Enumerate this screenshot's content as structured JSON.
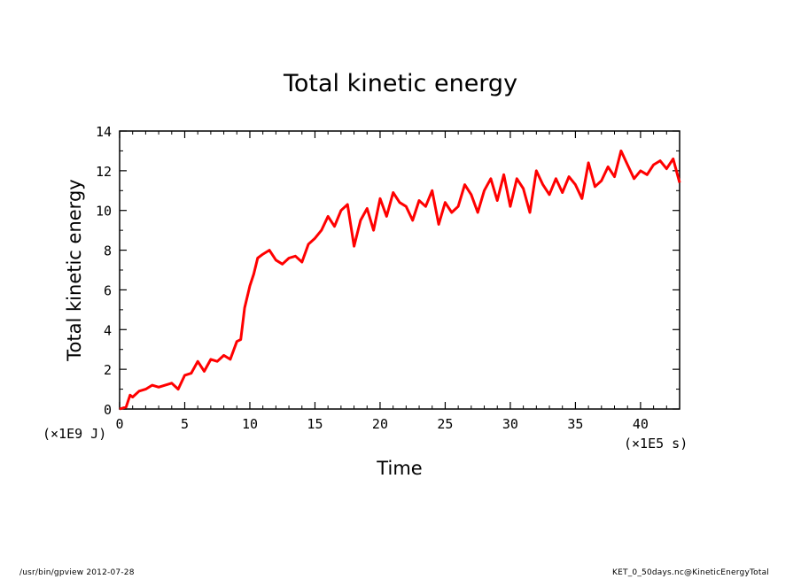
{
  "chart_data": {
    "type": "line",
    "title": "Total kinetic energy",
    "xlabel": "Time",
    "ylabel": "Total kinetic energy",
    "x_unit": "(×1E5 s)",
    "y_unit": "(×1E9 J)",
    "xlim": [
      0,
      43
    ],
    "ylim": [
      0,
      14
    ],
    "x_ticks": [
      "0",
      "5",
      "10",
      "15",
      "20",
      "25",
      "30",
      "35",
      "40"
    ],
    "y_ticks": [
      "0",
      "2",
      "4",
      "6",
      "8",
      "10",
      "12",
      "14"
    ],
    "grid": false,
    "series": [
      {
        "color": "#ff0000",
        "x": [
          0,
          0.5,
          0.8,
          1,
          1.5,
          2,
          2.5,
          3,
          3.5,
          4,
          4.5,
          5,
          5.5,
          6,
          6.5,
          7,
          7.5,
          8,
          8.5,
          9,
          9.3,
          9.6,
          10,
          10.3,
          10.6,
          11,
          11.5,
          12,
          12.5,
          13,
          13.5,
          14,
          14.5,
          15,
          15.5,
          16,
          16.5,
          17,
          17.5,
          18,
          18.5,
          19,
          19.5,
          20,
          20.5,
          21,
          21.5,
          22,
          22.5,
          23,
          23.5,
          24,
          24.5,
          25,
          25.5,
          26,
          26.5,
          27,
          27.5,
          28,
          28.5,
          29,
          29.5,
          30,
          30.5,
          31,
          31.5,
          32,
          32.5,
          33,
          33.5,
          34,
          34.5,
          35,
          35.5,
          36,
          36.5,
          37,
          37.5,
          38,
          38.5,
          39,
          39.5,
          40,
          40.5,
          41,
          41.5,
          42,
          42.5,
          43
        ],
        "y": [
          0,
          0.1,
          0.7,
          0.6,
          0.9,
          1.0,
          1.2,
          1.1,
          1.2,
          1.3,
          1.0,
          1.7,
          1.8,
          2.4,
          1.9,
          2.5,
          2.4,
          2.7,
          2.5,
          3.4,
          3.5,
          5.1,
          6.2,
          6.8,
          7.6,
          7.8,
          8.0,
          7.5,
          7.3,
          7.6,
          7.7,
          7.4,
          8.3,
          8.6,
          9.0,
          9.7,
          9.2,
          10.0,
          10.3,
          8.2,
          9.5,
          10.1,
          9.0,
          10.6,
          9.7,
          10.9,
          10.4,
          10.2,
          9.5,
          10.5,
          10.2,
          11.0,
          9.3,
          10.4,
          9.9,
          10.2,
          11.3,
          10.8,
          9.9,
          11.0,
          11.6,
          10.5,
          11.8,
          10.2,
          11.6,
          11.1,
          9.9,
          12.0,
          11.3,
          10.8,
          11.6,
          10.9,
          11.7,
          11.3,
          10.6,
          12.4,
          11.2,
          11.5,
          12.2,
          11.7,
          13.0,
          12.3,
          11.6,
          12.0,
          11.8,
          12.3,
          12.5,
          12.1,
          12.6,
          11.4
        ]
      }
    ]
  },
  "footer": {
    "left": "/usr/bin/gpview  2012-07-28",
    "right": "KET_0_50days.nc@KineticEnergyTotal"
  }
}
